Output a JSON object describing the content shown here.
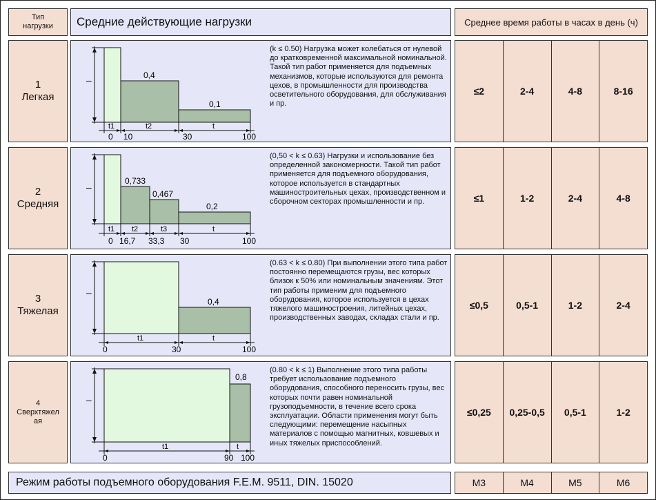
{
  "header": {
    "type_label": "Тип\nнагрузки",
    "main_label": "Средние действующие нагрузки",
    "time_label": "Среднее время работы в часах в день (ч)"
  },
  "rows": [
    {
      "type": "1\nЛегкая",
      "description": "(k ≤ 0.50) Нагрузка может колебаться от нулевой до кратковременной максимальной номинальной. Такой тип работ применяется для подъемных механизмов, которые используются для ремонта цехов, в промышленности для производства осветительного оборудования, для обслуживания и пр.",
      "times": [
        "≤2",
        "2-4",
        "4-8",
        "8-16"
      ],
      "diagram": {
        "dash": "–",
        "value_labels": [
          "0,4",
          "0,1"
        ],
        "segment_labels": [
          "t1",
          "t2",
          "t"
        ],
        "axis_labels": [
          "0",
          "10",
          "30",
          "100"
        ]
      }
    },
    {
      "type": "2\nСредняя",
      "description": "(0,50 < k ≤ 0.63) Нагрузки и использование без определенной закономерности. Такой тип работ применяется для подъемного оборудования, которое используется в стандартных машиностроительных цехах, производственном и сборочном секторах промышленности и пр.",
      "times": [
        "≤1",
        "1-2",
        "2-4",
        "4-8"
      ],
      "diagram": {
        "dash": "–",
        "value_labels": [
          "0,733",
          "0,467",
          "0,2"
        ],
        "segment_labels": [
          "t1",
          "t2",
          "t3",
          "t"
        ],
        "axis_labels": [
          "0",
          "16,7",
          "33,3",
          "30",
          "100"
        ]
      }
    },
    {
      "type": "3\nТяжелая",
      "description": "(0.63 < k ≤ 0.80) При выполнении этого типа работ постоянно перемещаются грузы, вес которых близок  к 50% или номинальным значениям. Этот тип работы применим для подъемного оборудования, которое используется в цехах тяжелого машиностроения, литейных цехах, производственных заводах, складах стали и пр.",
      "times": [
        "≤0,5",
        "0,5-1",
        "1-2",
        "2-4"
      ],
      "diagram": {
        "dash": "–",
        "value_labels": [
          "0,4"
        ],
        "segment_labels": [
          "t1",
          "t"
        ],
        "axis_labels": [
          "0",
          "30",
          "100"
        ]
      }
    },
    {
      "type": "4\nСверхтяжел\nая",
      "description": "(0.80 < k ≤ 1) Выполнение этого типа работы требует использование подъемного оборудования, способного переносить грузы, вес которых почти равен номинальной грузоподъемности, в течение всего срока эксплуатации. Области применения могут быть следующими: перемещение насыпных материалов с помощью магнитных, ковшевых и иных тяжелых приспособлений.",
      "times": [
        "≤0,25",
        "0,25-0,5",
        "0,5-1",
        "1-2"
      ],
      "diagram": {
        "dash": "–",
        "value_labels": [
          "0,8"
        ],
        "segment_labels": [
          "t1",
          "t"
        ],
        "axis_labels": [
          "0",
          "90",
          "100"
        ]
      }
    }
  ],
  "footer": {
    "label": "Режим работы подъемного оборудования  F.E.M. 9511, DIN. 15020",
    "classes": [
      "M3",
      "M4",
      "M5",
      "M6"
    ]
  },
  "colors": {
    "pink": "#f4ddd1",
    "lavender": "#e5e7f8",
    "light_green": "#e2f9df",
    "dark_green": "#a9bfa7"
  }
}
